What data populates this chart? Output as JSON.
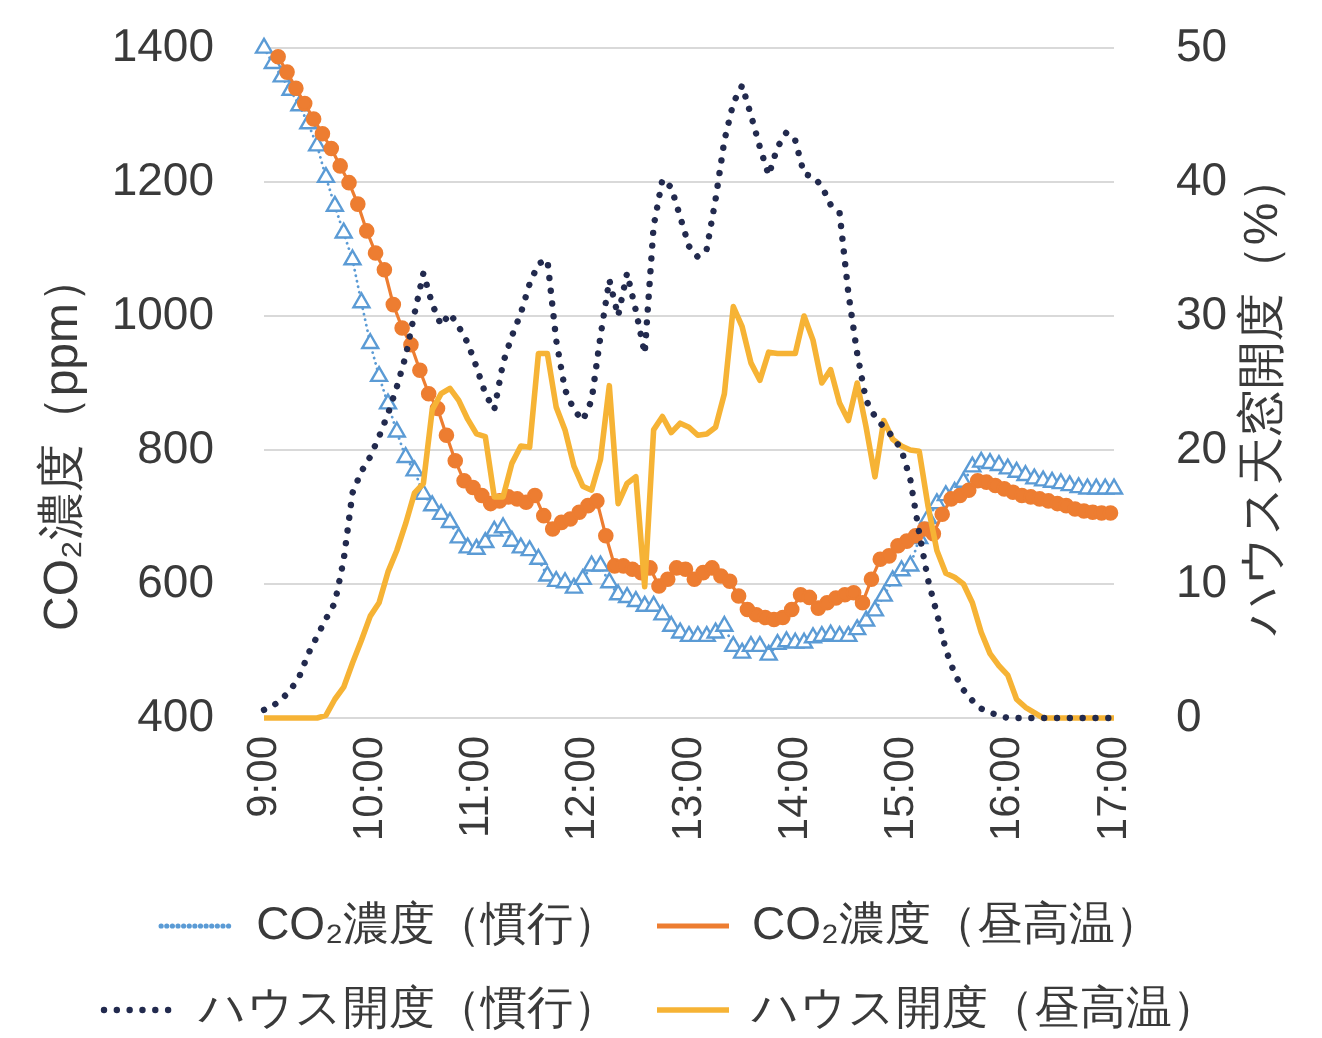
{
  "chart_data": {
    "type": "line",
    "ylabel": "CO₂濃度（ppm）",
    "y2label": "ハウス天窓開度（%）",
    "x": [
      9,
      9.083,
      9.167,
      9.25,
      9.333,
      9.417,
      9.5,
      9.583,
      9.667,
      9.75,
      9.833,
      9.917,
      10,
      10.083,
      10.167,
      10.25,
      10.333,
      10.417,
      10.5,
      10.583,
      10.667,
      10.75,
      10.833,
      10.917,
      11,
      11.083,
      11.167,
      11.25,
      11.333,
      11.417,
      11.5,
      11.583,
      11.667,
      11.75,
      11.833,
      11.917,
      12,
      12.083,
      12.167,
      12.25,
      12.333,
      12.417,
      12.5,
      12.583,
      12.667,
      12.75,
      12.833,
      12.917,
      13,
      13.083,
      13.167,
      13.25,
      13.333,
      13.417,
      13.5,
      13.583,
      13.667,
      13.75,
      13.833,
      13.917,
      14,
      14.083,
      14.167,
      14.25,
      14.333,
      14.417,
      14.5,
      14.583,
      14.667,
      14.75,
      14.833,
      14.917,
      15,
      15.083,
      15.167,
      15.25,
      15.333,
      15.417,
      15.5,
      15.583,
      15.667,
      15.75,
      15.833,
      15.917,
      16,
      16.083,
      16.167,
      16.25,
      16.333,
      16.417,
      16.5,
      16.583,
      16.667,
      16.75,
      16.833,
      16.917,
      17
    ],
    "xlim": [
      9,
      17
    ],
    "xticks": [
      {
        "value": 9,
        "label": "9:00"
      },
      {
        "value": 10,
        "label": "10:00"
      },
      {
        "value": 11,
        "label": "11:00"
      },
      {
        "value": 12,
        "label": "12:00"
      },
      {
        "value": 13,
        "label": "13:00"
      },
      {
        "value": 14,
        "label": "14:00"
      },
      {
        "value": 15,
        "label": "15:00"
      },
      {
        "value": 16,
        "label": "16:00"
      },
      {
        "value": 17,
        "label": "17:00"
      }
    ],
    "ylim": [
      400,
      1400
    ],
    "yticks": [
      400,
      600,
      800,
      1000,
      1200,
      1400
    ],
    "y2lim": [
      0,
      50
    ],
    "y2ticks": [
      0,
      10,
      20,
      30,
      40,
      50
    ],
    "grid": "y",
    "legend": "bottom",
    "series": [
      {
        "name": "CO₂濃度（慣行）",
        "color": "#5b9bd5",
        "marker": "triangle",
        "line_style": "dotted",
        "values": [
          1400,
          1377,
          1357,
          1337,
          1314,
          1287,
          1254,
          1207,
          1164,
          1124,
          1084,
          1020,
          959,
          910,
          869,
          827,
          789,
          769,
          734,
          717,
          704,
          692,
          669,
          654,
          652,
          662,
          679,
          684,
          664,
          654,
          650,
          637,
          612,
          604,
          602,
          594,
          607,
          627,
          627,
          602,
          584,
          580,
          574,
          567,
          567,
          554,
          537,
          527,
          522,
          522,
          522,
          527,
          537,
          507,
          497,
          507,
          507,
          494,
          510,
          514,
          512,
          512,
          520,
          522,
          524,
          522,
          522,
          532,
          545,
          560,
          582,
          605,
          620,
          627,
          668,
          698,
          720,
          732,
          737,
          752,
          775,
          782,
          780,
          777,
          772,
          767,
          762,
          757,
          754,
          752,
          750,
          747,
          744,
          742,
          742,
          742,
          742
        ]
      },
      {
        "name": "CO₂濃度（昼高温）",
        "color": "#ed7d31",
        "marker": "circle",
        "line_style": "solid",
        "x": [
          9.133,
          9.217,
          9.3,
          9.383,
          9.467,
          9.55,
          9.633,
          9.717,
          9.8,
          9.883,
          9.967,
          10.05,
          10.133,
          10.217,
          10.3,
          10.383,
          10.467,
          10.55,
          10.633,
          10.717,
          10.8,
          10.883,
          10.967,
          11.05,
          11.133,
          11.217,
          11.3,
          11.383,
          11.467,
          11.55,
          11.633,
          11.717,
          11.8,
          11.883,
          11.967,
          12.05,
          12.133,
          12.217,
          12.3,
          12.383,
          12.467,
          12.55,
          12.633,
          12.717,
          12.8,
          12.883,
          12.967,
          13.05,
          13.133,
          13.217,
          13.3,
          13.383,
          13.467,
          13.55,
          13.633,
          13.717,
          13.8,
          13.883,
          13.967,
          14.05,
          14.133,
          14.217,
          14.3,
          14.383,
          14.467,
          14.55,
          14.633,
          14.717,
          14.8,
          14.883,
          14.967,
          15.05,
          15.133,
          15.217,
          15.3,
          15.383,
          15.467,
          15.55,
          15.633,
          15.717,
          15.8,
          15.883,
          15.967,
          16.05,
          16.133,
          16.217,
          16.3,
          16.383,
          16.467,
          16.55,
          16.633,
          16.717,
          16.8,
          16.883,
          16.967
        ],
        "values": [
          1387,
          1364,
          1340,
          1317,
          1294,
          1272,
          1250,
          1224,
          1199,
          1167,
          1127,
          1094,
          1069,
          1017,
          982,
          957,
          919,
          884,
          862,
          822,
          784,
          754,
          744,
          732,
          720,
          724,
          730,
          727,
          722,
          732,
          702,
          682,
          692,
          697,
          707,
          717,
          724,
          672,
          627,
          627,
          622,
          617,
          624,
          597,
          607,
          624,
          622,
          607,
          617,
          624,
          612,
          604,
          582,
          562,
          554,
          550,
          547,
          550,
          562,
          584,
          580,
          564,
          572,
          579,
          584,
          587,
          572,
          607,
          637,
          642,
          657,
          664,
          672,
          682,
          675,
          704,
          727,
          732,
          740,
          754,
          752,
          747,
          742,
          737,
          732,
          730,
          727,
          724,
          720,
          717,
          712,
          709,
          707,
          706,
          706
        ]
      },
      {
        "name": "ハウス開度（慣行）",
        "color": "#222a4e",
        "marker": "none",
        "line_style": "dotted",
        "axis": "y2",
        "values": [
          0.6,
          0.9,
          1.4,
          2.1,
          3.1,
          4.8,
          6.1,
          7.4,
          8.6,
          11.8,
          16.8,
          18.4,
          19.5,
          21.0,
          22.7,
          24.7,
          27.0,
          30.2,
          33.2,
          30.9,
          29.3,
          30.2,
          29.2,
          28.0,
          26.2,
          24.2,
          23.0,
          26.5,
          28.5,
          30.2,
          32.4,
          33.9,
          34.2,
          28.2,
          24.5,
          23.0,
          22.2,
          23.7,
          28.5,
          32.7,
          30.0,
          33.2,
          30.4,
          27.2,
          36.7,
          40.2,
          39.6,
          37.4,
          35.2,
          34.4,
          35.0,
          38.7,
          43.1,
          45.9,
          47.2,
          45.0,
          42.6,
          40.5,
          42.6,
          43.7,
          43.1,
          40.6,
          40.4,
          39.7,
          38.3,
          37.7,
          31.7,
          27.2,
          23.7,
          22.5,
          21.7,
          21.0,
          20.0,
          17.8,
          13.8,
          10.3,
          7.8,
          5.1,
          3.3,
          2.1,
          1.3,
          0.7,
          0.4,
          0.2,
          0,
          0,
          0,
          0,
          0,
          0,
          0,
          0,
          0,
          0,
          0,
          0,
          0
        ]
      },
      {
        "name": "ハウス開度（昼高温）",
        "color": "#f6b335",
        "marker": "none",
        "line_style": "solid",
        "axis": "y2",
        "values": [
          0,
          0,
          0,
          0,
          0,
          0,
          0,
          0.2,
          1.4,
          2.3,
          4.1,
          5.8,
          7.6,
          8.6,
          10.9,
          12.5,
          14.5,
          16.8,
          17.5,
          23.0,
          24.2,
          24.6,
          23.7,
          22.3,
          21.2,
          21.0,
          16.5,
          16.5,
          19.0,
          20.3,
          20.2,
          27.2,
          27.2,
          23.2,
          21.5,
          18.8,
          17.3,
          17.0,
          19.3,
          24.8,
          16.0,
          17.5,
          18.0,
          9.8,
          21.5,
          22.5,
          21.3,
          22.0,
          21.7,
          21.1,
          21.2,
          21.7,
          24.2,
          30.7,
          29.2,
          26.5,
          25.2,
          27.3,
          27.2,
          27.2,
          27.2,
          30.0,
          28.2,
          25.0,
          26.0,
          23.5,
          22.2,
          25.0,
          21.7,
          18.0,
          22.2,
          20.8,
          20.3,
          20.0,
          19.9,
          15.8,
          12.5,
          10.8,
          10.5,
          10.0,
          8.6,
          6.4,
          4.8,
          3.9,
          3.2,
          1.4,
          0.8,
          0.4,
          0,
          0,
          0,
          0,
          0,
          0,
          0,
          0,
          0
        ]
      }
    ]
  }
}
